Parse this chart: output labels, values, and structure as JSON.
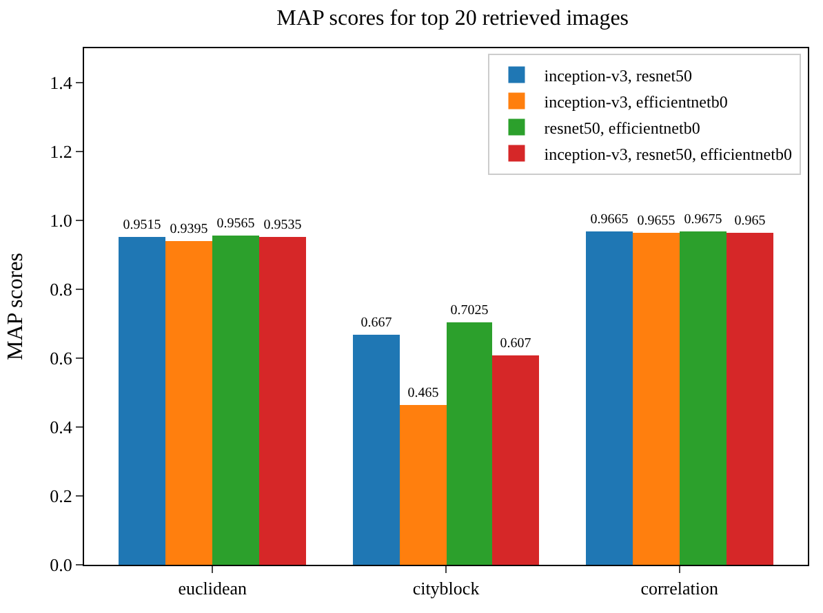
{
  "chart_data": {
    "type": "bar",
    "title": "MAP scores for top 20 retrieved images",
    "ylabel": "MAP scores",
    "categories": [
      "euclidean",
      "cityblock",
      "correlation"
    ],
    "series": [
      {
        "name": "inception-v3, resnet50",
        "color": "#1f77b4",
        "values": [
          0.9515,
          0.667,
          0.9665
        ]
      },
      {
        "name": "inception-v3, efficientnetb0",
        "color": "#ff7f0e",
        "values": [
          0.9395,
          0.465,
          0.9655
        ]
      },
      {
        "name": "resnet50, efficientnetb0",
        "color": "#2ca02c",
        "values": [
          0.9565,
          0.7025,
          0.9675
        ]
      },
      {
        "name": "inception-v3, resnet50, efficientnetb0",
        "color": "#d62728",
        "values": [
          0.9535,
          0.607,
          0.965
        ]
      }
    ],
    "ylim": [
      0,
      1.5
    ],
    "yticks": [
      {
        "value": 0,
        "label": "0.0"
      },
      0.2,
      0.4,
      0.6,
      0.8,
      {
        "value": 1,
        "label": "1.0"
      },
      1.2,
      1.4
    ],
    "data_labels": true,
    "legend": "top right"
  }
}
